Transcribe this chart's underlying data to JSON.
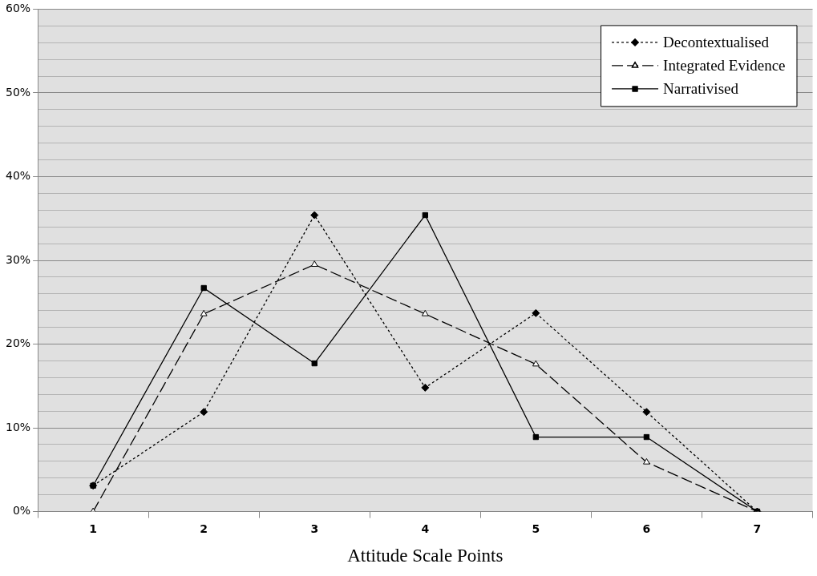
{
  "chart_data": {
    "type": "line",
    "xlabel": "Attitude Scale Points",
    "categories": [
      "1",
      "2",
      "3",
      "4",
      "5",
      "6",
      "7"
    ],
    "series": [
      {
        "name": "Decontextualised",
        "color": "#000000",
        "marker": "diamond",
        "line_style": "dotted",
        "values": [
          3.1,
          11.9,
          35.4,
          14.8,
          23.7,
          11.9,
          0
        ]
      },
      {
        "name": "Integrated Evidence",
        "color": "#000000",
        "marker": "triangle",
        "line_style": "dashed",
        "values": [
          0,
          23.6,
          29.5,
          23.6,
          17.6,
          5.9,
          0
        ]
      },
      {
        "name": "Narrativised",
        "color": "#000000",
        "marker": "square",
        "line_style": "solid",
        "values": [
          3.1,
          26.7,
          17.7,
          35.4,
          8.9,
          8.9,
          0
        ]
      }
    ],
    "ylim": [
      0,
      60
    ],
    "yticks": [
      {
        "value": 0,
        "label": "0%"
      },
      {
        "value": 2,
        "label": null
      },
      {
        "value": 4,
        "label": null
      },
      {
        "value": 6,
        "label": null
      },
      {
        "value": 8,
        "label": null
      },
      {
        "value": 10,
        "label": "10%"
      },
      {
        "value": 12,
        "label": null
      },
      {
        "value": 14,
        "label": null
      },
      {
        "value": 16,
        "label": null
      },
      {
        "value": 18,
        "label": null
      },
      {
        "value": 20,
        "label": "20%"
      },
      {
        "value": 22,
        "label": null
      },
      {
        "value": 24,
        "label": null
      },
      {
        "value": 26,
        "label": null
      },
      {
        "value": 28,
        "label": null
      },
      {
        "value": 30,
        "label": "30%"
      },
      {
        "value": 32,
        "label": null
      },
      {
        "value": 34,
        "label": null
      },
      {
        "value": 36,
        "label": null
      },
      {
        "value": 38,
        "label": null
      },
      {
        "value": 40,
        "label": "40%"
      },
      {
        "value": 42,
        "label": null
      },
      {
        "value": 44,
        "label": null
      },
      {
        "value": 46,
        "label": null
      },
      {
        "value": 48,
        "label": null
      },
      {
        "value": 50,
        "label": "50%"
      },
      {
        "value": 52,
        "label": null
      },
      {
        "value": 54,
        "label": null
      },
      {
        "value": 56,
        "label": null
      },
      {
        "value": 58,
        "label": null
      },
      {
        "value": 60,
        "label": "60%"
      }
    ],
    "grid": "y",
    "legend": "top right"
  }
}
